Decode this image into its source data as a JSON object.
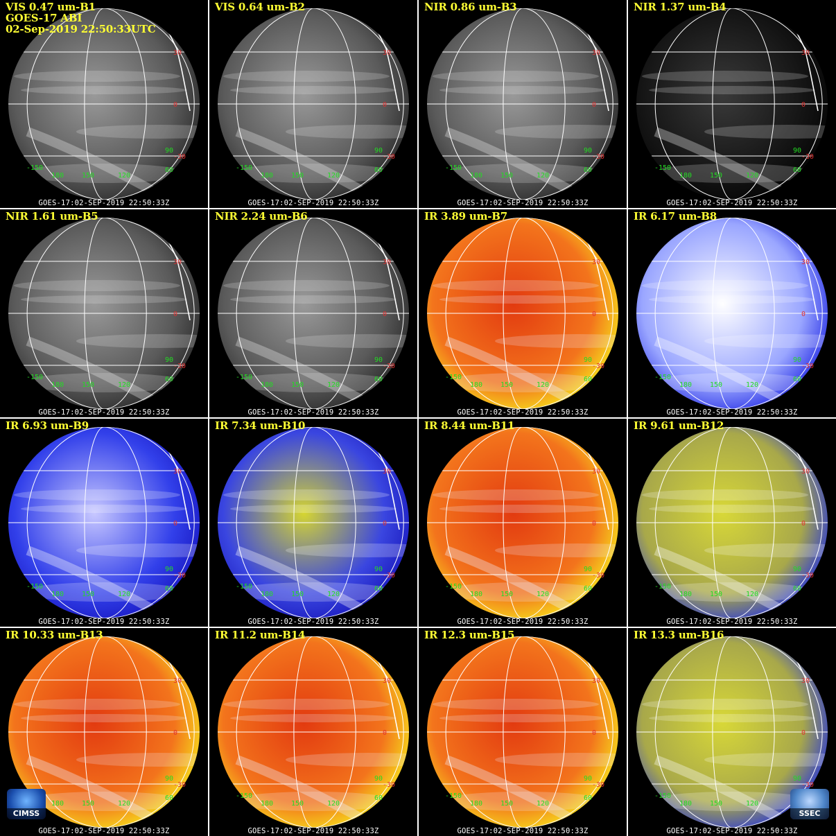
{
  "header": {
    "lines": [
      "GOES-17 ABI",
      "02-Sep-2019 22:50:33UTC"
    ]
  },
  "timestamp": "GOES-17:02-SEP-2019 22:50:33Z",
  "latitude_labels": [
    "30",
    "0",
    "-30"
  ],
  "longitude_labels": [
    "-150",
    "180",
    "150",
    "120",
    "60",
    "90"
  ],
  "logos": {
    "left": "CIMSS",
    "right": "SSEC"
  },
  "panels": [
    {
      "label": "VIS 0.47 um-B1",
      "palette": "gray"
    },
    {
      "label": "VIS 0.64 um-B2",
      "palette": "gray"
    },
    {
      "label": "NIR 0.86 um-B3",
      "palette": "gray"
    },
    {
      "label": "NIR 1.37 um-B4",
      "palette": "dark"
    },
    {
      "label": "NIR 1.61 um-B5",
      "palette": "gray"
    },
    {
      "label": "NIR 2.24 um-B6",
      "palette": "gray"
    },
    {
      "label": "IR 3.89 um-B7",
      "palette": "warm"
    },
    {
      "label": "IR 6.17 um-B8",
      "palette": "wv-light"
    },
    {
      "label": "IR 6.93 um-B9",
      "palette": "wv"
    },
    {
      "label": "IR 7.34 um-B10",
      "palette": "wv-yellow"
    },
    {
      "label": "IR 8.44 um-B11",
      "palette": "warm"
    },
    {
      "label": "IR 9.61 um-B12",
      "palette": "ozone"
    },
    {
      "label": "IR 10.33 um-B13",
      "palette": "warm"
    },
    {
      "label": "IR 11.2 um-B14",
      "palette": "warm"
    },
    {
      "label": "IR 12.3 um-B15",
      "palette": "warm"
    },
    {
      "label": "IR 13.3 um-B16",
      "palette": "ozone"
    }
  ],
  "palette_colors": {
    "gray": [
      "#9a9a9a",
      "#5a5a5a",
      "#2c2c2c"
    ],
    "dark": [
      "#3a3a3a",
      "#151515",
      "#050505"
    ],
    "warm": [
      "#e23a10",
      "#f3741c",
      "#f6e21c"
    ],
    "wv-light": [
      "#ffffff",
      "#9aa6ff",
      "#2b33e6"
    ],
    "wv": [
      "#c8c8ff",
      "#3240ea",
      "#1a1ac4"
    ],
    "wv-yellow": [
      "#d6d630",
      "#3a46e0",
      "#1b1bbf"
    ],
    "ozone": [
      "#d8d838",
      "#a8a84a",
      "#2c3ad6"
    ]
  }
}
